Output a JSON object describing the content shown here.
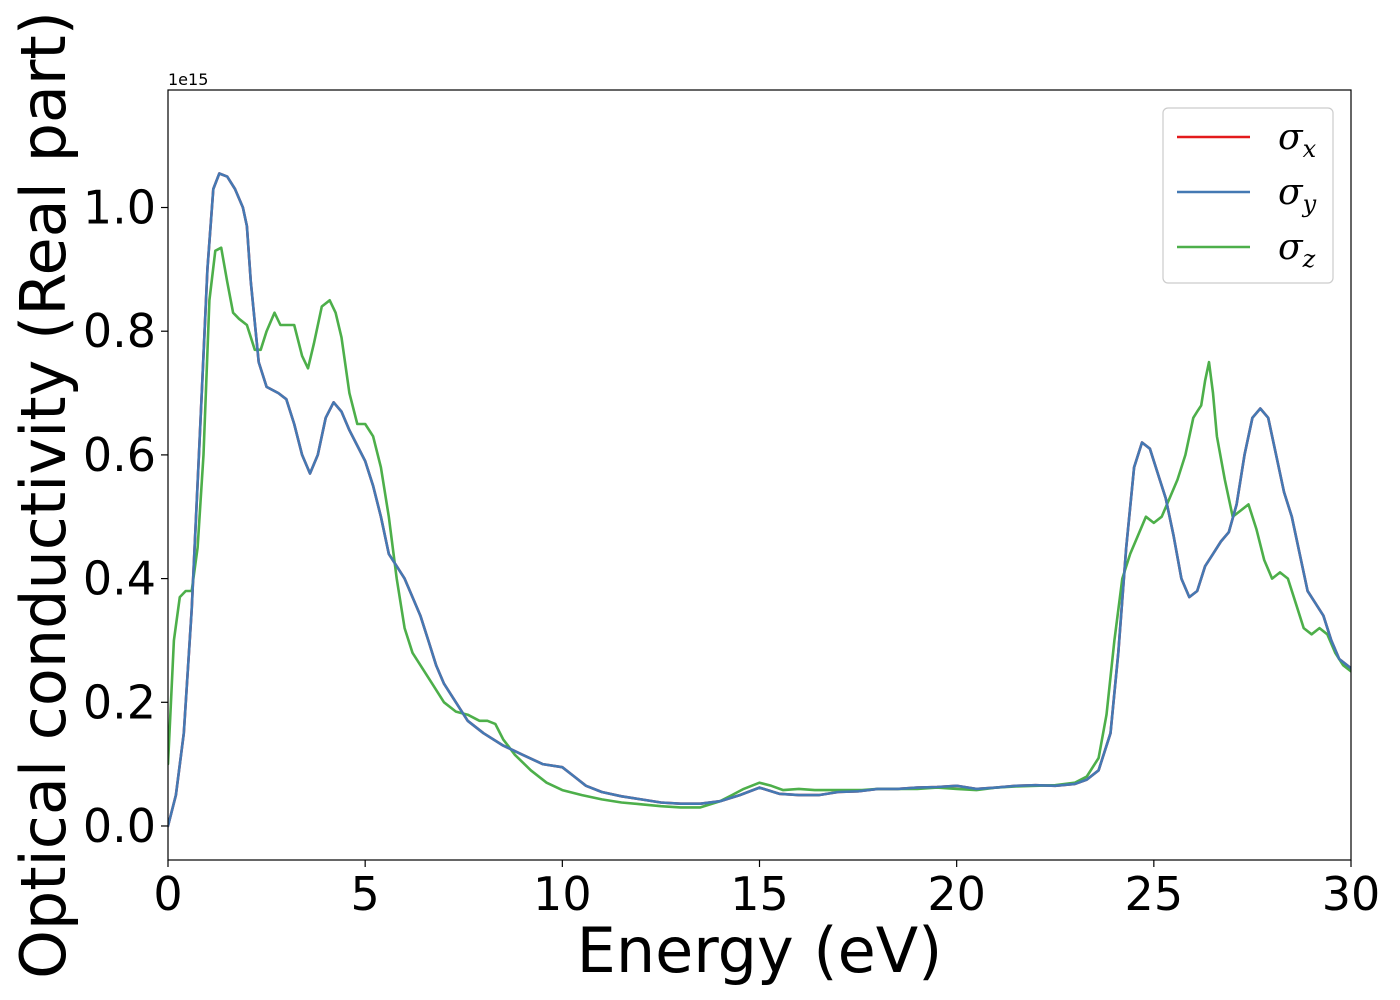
{
  "chart_data": {
    "type": "line",
    "xlabel": "Energy (eV)",
    "ylabel": "Optical conductivity (Real part)",
    "y_offset_label": "1e15",
    "xlim": [
      0,
      30
    ],
    "ylim": [
      -0.055,
      1.19
    ],
    "x_ticks": [
      "0",
      "5",
      "10",
      "15",
      "20",
      "25",
      "30"
    ],
    "x_tick_values": [
      0,
      5,
      10,
      15,
      20,
      25,
      30
    ],
    "y_ticks": [
      "0.0",
      "0.2",
      "0.4",
      "0.6",
      "0.8",
      "1.0"
    ],
    "y_tick_values": [
      0.0,
      0.2,
      0.4,
      0.6,
      0.8,
      1.0
    ],
    "grid": false,
    "legend_position": "upper right",
    "series": [
      {
        "name": "σx",
        "base": "σ",
        "sub": "x",
        "color": "#e31a1c",
        "x": [
          0,
          0.2,
          0.4,
          0.6,
          0.8,
          1.0,
          1.15,
          1.3,
          1.5,
          1.7,
          1.9,
          2.0,
          2.1,
          2.3,
          2.5,
          2.8,
          3.0,
          3.2,
          3.4,
          3.6,
          3.8,
          4.0,
          4.2,
          4.4,
          4.6,
          4.8,
          5.0,
          5.2,
          5.4,
          5.6,
          5.8,
          6.0,
          6.2,
          6.4,
          6.6,
          6.8,
          7.0,
          7.3,
          7.6,
          8.0,
          8.5,
          9.0,
          9.5,
          10.0,
          10.3,
          10.6,
          11.0,
          11.5,
          12.0,
          12.5,
          13.0,
          13.5,
          14.0,
          14.5,
          15.0,
          15.5,
          16.0,
          16.5,
          17.0,
          17.5,
          18.0,
          18.5,
          19.0,
          19.5,
          20.0,
          20.5,
          21.0,
          21.5,
          22.0,
          22.5,
          23.0,
          23.3,
          23.6,
          23.9,
          24.1,
          24.3,
          24.5,
          24.7,
          24.9,
          25.1,
          25.3,
          25.5,
          25.7,
          25.9,
          26.1,
          26.3,
          26.5,
          26.7,
          26.9,
          27.1,
          27.3,
          27.5,
          27.7,
          27.9,
          28.1,
          28.3,
          28.5,
          28.7,
          28.9,
          29.1,
          29.3,
          29.5,
          29.7,
          30.0
        ],
        "y": [
          0.0,
          0.05,
          0.15,
          0.35,
          0.62,
          0.9,
          1.03,
          1.055,
          1.05,
          1.03,
          1.0,
          0.97,
          0.88,
          0.75,
          0.71,
          0.7,
          0.69,
          0.65,
          0.6,
          0.57,
          0.6,
          0.66,
          0.685,
          0.67,
          0.64,
          0.615,
          0.59,
          0.55,
          0.5,
          0.44,
          0.42,
          0.4,
          0.37,
          0.34,
          0.3,
          0.26,
          0.23,
          0.2,
          0.17,
          0.15,
          0.13,
          0.115,
          0.1,
          0.095,
          0.08,
          0.065,
          0.055,
          0.048,
          0.043,
          0.038,
          0.036,
          0.036,
          0.04,
          0.05,
          0.062,
          0.052,
          0.05,
          0.05,
          0.055,
          0.056,
          0.06,
          0.06,
          0.062,
          0.063,
          0.065,
          0.06,
          0.062,
          0.065,
          0.066,
          0.065,
          0.068,
          0.075,
          0.09,
          0.15,
          0.28,
          0.45,
          0.58,
          0.62,
          0.61,
          0.57,
          0.53,
          0.47,
          0.4,
          0.37,
          0.38,
          0.42,
          0.44,
          0.46,
          0.475,
          0.52,
          0.6,
          0.66,
          0.675,
          0.66,
          0.6,
          0.54,
          0.5,
          0.44,
          0.38,
          0.36,
          0.34,
          0.3,
          0.27,
          0.255
        ]
      },
      {
        "name": "σy",
        "base": "σ",
        "sub": "y",
        "color": "#4479b3",
        "x": [
          0,
          0.2,
          0.4,
          0.6,
          0.8,
          1.0,
          1.15,
          1.3,
          1.5,
          1.7,
          1.9,
          2.0,
          2.1,
          2.3,
          2.5,
          2.8,
          3.0,
          3.2,
          3.4,
          3.6,
          3.8,
          4.0,
          4.2,
          4.4,
          4.6,
          4.8,
          5.0,
          5.2,
          5.4,
          5.6,
          5.8,
          6.0,
          6.2,
          6.4,
          6.6,
          6.8,
          7.0,
          7.3,
          7.6,
          8.0,
          8.5,
          9.0,
          9.5,
          10.0,
          10.3,
          10.6,
          11.0,
          11.5,
          12.0,
          12.5,
          13.0,
          13.5,
          14.0,
          14.5,
          15.0,
          15.5,
          16.0,
          16.5,
          17.0,
          17.5,
          18.0,
          18.5,
          19.0,
          19.5,
          20.0,
          20.5,
          21.0,
          21.5,
          22.0,
          22.5,
          23.0,
          23.3,
          23.6,
          23.9,
          24.1,
          24.3,
          24.5,
          24.7,
          24.9,
          25.1,
          25.3,
          25.5,
          25.7,
          25.9,
          26.1,
          26.3,
          26.5,
          26.7,
          26.9,
          27.1,
          27.3,
          27.5,
          27.7,
          27.9,
          28.1,
          28.3,
          28.5,
          28.7,
          28.9,
          29.1,
          29.3,
          29.5,
          29.7,
          30.0
        ],
        "y": [
          0.0,
          0.05,
          0.15,
          0.35,
          0.62,
          0.9,
          1.03,
          1.055,
          1.05,
          1.03,
          1.0,
          0.97,
          0.88,
          0.75,
          0.71,
          0.7,
          0.69,
          0.65,
          0.6,
          0.57,
          0.6,
          0.66,
          0.685,
          0.67,
          0.64,
          0.615,
          0.59,
          0.55,
          0.5,
          0.44,
          0.42,
          0.4,
          0.37,
          0.34,
          0.3,
          0.26,
          0.23,
          0.2,
          0.17,
          0.15,
          0.13,
          0.115,
          0.1,
          0.095,
          0.08,
          0.065,
          0.055,
          0.048,
          0.043,
          0.038,
          0.036,
          0.036,
          0.04,
          0.05,
          0.062,
          0.052,
          0.05,
          0.05,
          0.055,
          0.056,
          0.06,
          0.06,
          0.062,
          0.063,
          0.065,
          0.06,
          0.062,
          0.065,
          0.066,
          0.065,
          0.068,
          0.075,
          0.09,
          0.15,
          0.28,
          0.45,
          0.58,
          0.62,
          0.61,
          0.57,
          0.53,
          0.47,
          0.4,
          0.37,
          0.38,
          0.42,
          0.44,
          0.46,
          0.475,
          0.52,
          0.6,
          0.66,
          0.675,
          0.66,
          0.6,
          0.54,
          0.5,
          0.44,
          0.38,
          0.36,
          0.34,
          0.3,
          0.27,
          0.255
        ]
      },
      {
        "name": "σz",
        "base": "σ",
        "sub": "z",
        "color": "#4daf4a",
        "x": [
          0,
          0.15,
          0.3,
          0.45,
          0.6,
          0.75,
          0.9,
          1.05,
          1.2,
          1.35,
          1.5,
          1.65,
          1.8,
          2.0,
          2.2,
          2.35,
          2.5,
          2.7,
          2.85,
          3.0,
          3.2,
          3.4,
          3.55,
          3.7,
          3.9,
          4.1,
          4.25,
          4.4,
          4.6,
          4.8,
          5.0,
          5.2,
          5.4,
          5.6,
          5.8,
          6.0,
          6.2,
          6.4,
          6.7,
          7.0,
          7.3,
          7.6,
          7.9,
          8.1,
          8.3,
          8.5,
          8.8,
          9.2,
          9.6,
          10.0,
          10.5,
          11.0,
          11.5,
          12.0,
          12.5,
          13.0,
          13.5,
          14.0,
          14.3,
          14.6,
          15.0,
          15.3,
          15.6,
          16.0,
          16.4,
          16.8,
          17.2,
          17.6,
          18.0,
          18.5,
          19.0,
          19.5,
          20.0,
          20.5,
          21.0,
          21.5,
          22.0,
          22.5,
          23.0,
          23.3,
          23.6,
          23.8,
          24.0,
          24.2,
          24.4,
          24.6,
          24.8,
          25.0,
          25.2,
          25.4,
          25.6,
          25.8,
          26.0,
          26.1,
          26.2,
          26.3,
          26.4,
          26.5,
          26.6,
          26.8,
          27.0,
          27.2,
          27.4,
          27.6,
          27.8,
          28.0,
          28.2,
          28.4,
          28.6,
          28.8,
          29.0,
          29.2,
          29.4,
          29.6,
          29.8,
          30.0
        ],
        "y": [
          0.1,
          0.3,
          0.37,
          0.38,
          0.38,
          0.45,
          0.6,
          0.85,
          0.93,
          0.935,
          0.88,
          0.83,
          0.82,
          0.81,
          0.77,
          0.77,
          0.8,
          0.83,
          0.81,
          0.81,
          0.81,
          0.76,
          0.74,
          0.78,
          0.84,
          0.85,
          0.83,
          0.79,
          0.7,
          0.65,
          0.65,
          0.63,
          0.58,
          0.5,
          0.4,
          0.32,
          0.28,
          0.26,
          0.23,
          0.2,
          0.185,
          0.18,
          0.17,
          0.17,
          0.165,
          0.14,
          0.115,
          0.09,
          0.07,
          0.058,
          0.05,
          0.043,
          0.038,
          0.035,
          0.032,
          0.03,
          0.03,
          0.04,
          0.05,
          0.06,
          0.07,
          0.065,
          0.058,
          0.06,
          0.058,
          0.058,
          0.058,
          0.058,
          0.06,
          0.06,
          0.06,
          0.062,
          0.06,
          0.058,
          0.062,
          0.064,
          0.065,
          0.066,
          0.07,
          0.08,
          0.11,
          0.18,
          0.3,
          0.4,
          0.44,
          0.47,
          0.5,
          0.49,
          0.5,
          0.53,
          0.56,
          0.6,
          0.66,
          0.67,
          0.68,
          0.72,
          0.75,
          0.7,
          0.63,
          0.56,
          0.5,
          0.51,
          0.52,
          0.48,
          0.43,
          0.4,
          0.41,
          0.4,
          0.36,
          0.32,
          0.31,
          0.32,
          0.31,
          0.28,
          0.26,
          0.25
        ]
      }
    ]
  }
}
